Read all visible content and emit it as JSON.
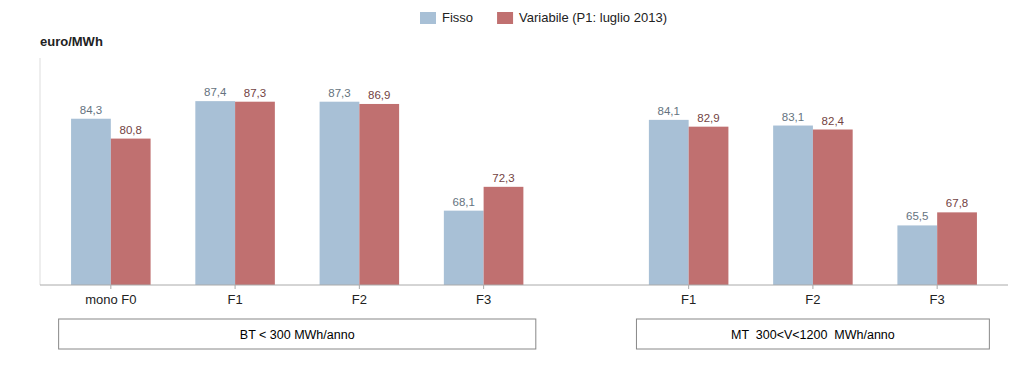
{
  "chart_data": {
    "type": "bar",
    "y_label": "euro/MWh",
    "categories": [
      "mono F0",
      "F1",
      "F2",
      "F3",
      "F1",
      "F2",
      "F3"
    ],
    "series": [
      {
        "name": "Fisso",
        "color": "#a8c0d6",
        "values": [
          84.3,
          87.4,
          87.3,
          68.1,
          84.1,
          83.1,
          65.5
        ],
        "value_labels": [
          "84,3",
          "87,4",
          "87,3",
          "68,1",
          "84,1",
          "83,1",
          "65,5"
        ]
      },
      {
        "name": "Variabile (P1: luglio 2013)",
        "color": "#c07070",
        "values": [
          80.8,
          87.3,
          86.9,
          72.3,
          82.9,
          82.4,
          67.8
        ],
        "value_labels": [
          "80,8",
          "87,3",
          "86,9",
          "72,3",
          "82,9",
          "82,4",
          "67,8"
        ]
      }
    ],
    "annotations": [
      "BT < 300 MWh/anno",
      "MT  300<V<1200  MWh/anno"
    ],
    "ylim": [
      55,
      95
    ],
    "yticks": [],
    "tick_labels": "x",
    "data_labels": true,
    "legend": "top",
    "grid": false
  }
}
